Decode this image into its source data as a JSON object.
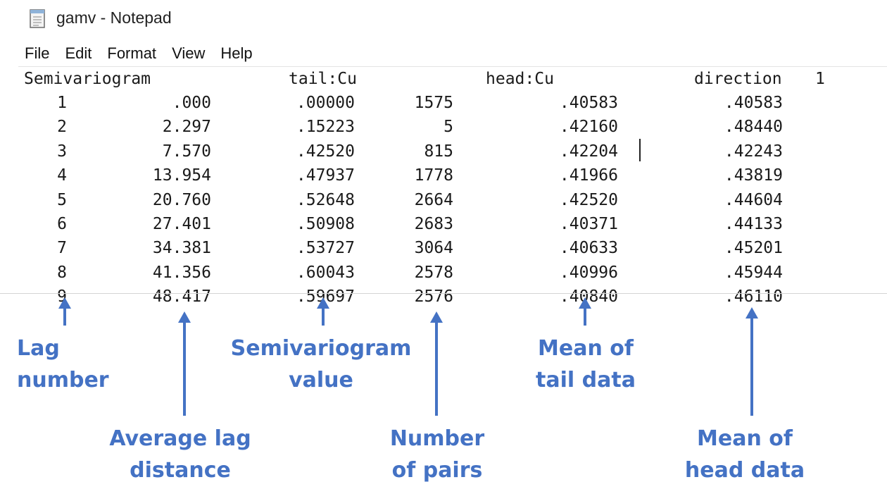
{
  "window": {
    "title": "gamv - Notepad",
    "icon": "notepad-icon"
  },
  "menu": [
    "File",
    "Edit",
    "Format",
    "View",
    "Help"
  ],
  "file_header": {
    "col1": "Semivariogram",
    "col2": "tail:Cu",
    "col3": "head:Cu",
    "col4": "direction",
    "col5": "1"
  },
  "rows": [
    [
      "1",
      ".000",
      ".00000",
      "1575",
      ".40583",
      ".40583"
    ],
    [
      "2",
      "2.297",
      ".15223",
      "5",
      ".42160",
      ".48440"
    ],
    [
      "3",
      "7.570",
      ".42520",
      "815",
      ".42204",
      ".42243"
    ],
    [
      "4",
      "13.954",
      ".47937",
      "1778",
      ".41966",
      ".43819"
    ],
    [
      "5",
      "20.760",
      ".52648",
      "2664",
      ".42520",
      ".44604"
    ],
    [
      "6",
      "27.401",
      ".50908",
      "2683",
      ".40371",
      ".44133"
    ],
    [
      "7",
      "34.381",
      ".53727",
      "3064",
      ".40633",
      ".45201"
    ],
    [
      "8",
      "41.356",
      ".60043",
      "2578",
      ".40996",
      ".45944"
    ],
    [
      "9",
      "48.417",
      ".59697",
      "2576",
      ".40840",
      ".46110"
    ]
  ],
  "annotations": [
    {
      "lines": [
        "Lag",
        "number"
      ]
    },
    {
      "lines": [
        "Average lag",
        "distance"
      ]
    },
    {
      "lines": [
        "Semivariogram",
        "value"
      ]
    },
    {
      "lines": [
        "Number",
        "of pairs"
      ]
    },
    {
      "lines": [
        "Mean of",
        "tail data"
      ]
    },
    {
      "lines": [
        "Mean of",
        "head data"
      ]
    }
  ],
  "colors": {
    "annotation": "#4472c4",
    "text": "#1a1a1a",
    "background": "#ffffff"
  }
}
